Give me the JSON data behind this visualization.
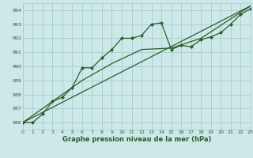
{
  "title": "Graphe pression niveau de la mer (hPa)",
  "bg_color": "#cce8e8",
  "grid_color": "#aacccc",
  "line_color": "#2d5a2d",
  "xmin": 0,
  "xmax": 23,
  "ymin": 985.5,
  "ymax": 994.5,
  "yticks": [
    986,
    987,
    988,
    989,
    990,
    991,
    992,
    993,
    994
  ],
  "xticks": [
    0,
    1,
    2,
    3,
    4,
    5,
    6,
    7,
    8,
    9,
    10,
    11,
    12,
    13,
    14,
    15,
    16,
    17,
    18,
    19,
    20,
    21,
    22,
    23
  ],
  "series1_x": [
    0,
    1,
    2,
    3,
    4,
    5,
    6,
    7,
    8,
    9,
    10,
    11,
    12,
    13,
    14,
    15,
    16,
    17,
    18,
    19,
    20,
    21,
    22,
    23
  ],
  "series1_y": [
    986.0,
    986.0,
    986.6,
    987.5,
    987.8,
    988.5,
    989.9,
    989.9,
    990.6,
    991.2,
    992.0,
    992.0,
    992.2,
    993.0,
    993.1,
    991.2,
    991.5,
    991.4,
    991.9,
    992.1,
    992.4,
    993.0,
    993.7,
    994.1
  ],
  "series2_x": [
    0,
    23
  ],
  "series2_y": [
    986.0,
    994.3
  ],
  "series3_x": [
    0,
    3,
    6,
    9,
    12,
    15,
    18,
    23
  ],
  "series3_y": [
    986.0,
    987.5,
    989.0,
    990.2,
    991.2,
    991.3,
    992.0,
    994.3
  ]
}
